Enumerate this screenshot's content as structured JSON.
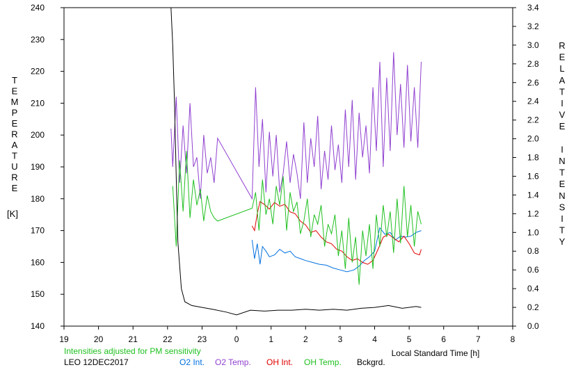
{
  "chart_data": {
    "type": "line",
    "ylabel_left": "TEMPERATURE",
    "ylabel_left_unit": "[K]",
    "ylabel_right": "RELATIVE INTENSITY",
    "xlabel": "Local Standard Time [h]",
    "note": "Intensities adjusted for PM sensitivity",
    "station": "LEO 12DEC2017",
    "x_ticks": [
      "19",
      "20",
      "21",
      "22",
      "23",
      "0",
      "1",
      "2",
      "3",
      "4",
      "5",
      "6",
      "7",
      "8"
    ],
    "y_left_ticks": [
      "140",
      "150",
      "160",
      "170",
      "180",
      "190",
      "200",
      "210",
      "220",
      "230",
      "240"
    ],
    "y_right_ticks": [
      "0.0",
      "0.2",
      "0.4",
      "0.6",
      "0.8",
      "1.0",
      "1.2",
      "1.4",
      "1.6",
      "1.8",
      "2.0",
      "2.2",
      "2.4",
      "2.6",
      "2.8",
      "3.0",
      "3.2",
      "3.4"
    ],
    "xlim": [
      19,
      32
    ],
    "ylim_left": [
      140,
      240
    ],
    "ylim_right": [
      0,
      3.4
    ],
    "grid": false,
    "series": [
      {
        "name": "O2 Int.",
        "axis": "right",
        "color": "#0070e0",
        "x": [
          24.45,
          24.52,
          24.6,
          24.68,
          24.75,
          24.85,
          24.95,
          25.1,
          25.25,
          25.4,
          25.55,
          25.7,
          25.85,
          26.0,
          26.2,
          26.4,
          26.6,
          26.8,
          27.0,
          27.2,
          27.4,
          27.55,
          27.7,
          27.85,
          28.0,
          28.15,
          28.3,
          28.45,
          28.6,
          28.75,
          28.9,
          29.05,
          29.2,
          29.35
        ],
        "y": [
          0.92,
          0.72,
          0.88,
          0.66,
          0.85,
          0.8,
          0.74,
          0.76,
          0.82,
          0.78,
          0.8,
          0.74,
          0.72,
          0.7,
          0.68,
          0.66,
          0.65,
          0.62,
          0.6,
          0.58,
          0.6,
          0.64,
          0.7,
          0.74,
          0.8,
          1.05,
          0.98,
          1.0,
          0.92,
          0.96,
          0.95,
          0.96,
          1.0,
          1.02
        ]
      },
      {
        "name": "O2 Temp.",
        "axis": "left",
        "color": "#9040d0",
        "x": [
          22.1,
          22.15,
          22.25,
          22.35,
          22.45,
          22.55,
          22.65,
          22.75,
          22.85,
          22.95,
          23.05,
          23.15,
          23.25,
          23.35,
          23.45,
          24.45,
          24.55,
          24.65,
          24.75,
          24.85,
          24.95,
          25.05,
          25.15,
          25.25,
          25.35,
          25.45,
          25.55,
          25.65,
          25.75,
          25.85,
          25.95,
          26.05,
          26.15,
          26.25,
          26.35,
          26.45,
          26.55,
          26.65,
          26.75,
          26.85,
          26.95,
          27.05,
          27.15,
          27.25,
          27.35,
          27.45,
          27.55,
          27.65,
          27.75,
          27.85,
          27.95,
          28.05,
          28.15,
          28.25,
          28.35,
          28.45,
          28.55,
          28.65,
          28.75,
          28.85,
          28.95,
          29.05,
          29.15,
          29.25,
          29.35
        ],
        "y": [
          202,
          190,
          212,
          185,
          203,
          188,
          210,
          190,
          193,
          180,
          200,
          188,
          193,
          185,
          199,
          180,
          215,
          190,
          205,
          182,
          201,
          187,
          200,
          182,
          188,
          198,
          185,
          194,
          188,
          180,
          204,
          185,
          199,
          190,
          206,
          183,
          195,
          186,
          203,
          189,
          197,
          185,
          208,
          190,
          211,
          186,
          207,
          193,
          203,
          188,
          215,
          195,
          223,
          190,
          218,
          195,
          226,
          200,
          216,
          196,
          222,
          198,
          215,
          196,
          223
        ]
      },
      {
        "name": "OH Int.",
        "axis": "right",
        "color": "#e00000",
        "x": [
          24.45,
          24.52,
          24.6,
          24.68,
          24.8,
          24.95,
          25.1,
          25.25,
          25.4,
          25.55,
          25.7,
          25.85,
          26.0,
          26.15,
          26.3,
          26.45,
          26.6,
          26.75,
          26.9,
          27.05,
          27.2,
          27.35,
          27.5,
          27.65,
          27.8,
          27.95,
          28.1,
          28.25,
          28.4,
          28.55,
          28.7,
          28.85,
          29.0,
          29.15,
          29.3,
          29.35
        ],
        "y": [
          1.07,
          1.02,
          1.2,
          1.33,
          1.3,
          1.25,
          1.32,
          1.28,
          1.3,
          1.22,
          1.2,
          1.12,
          1.08,
          1.0,
          1.02,
          0.95,
          0.9,
          0.88,
          0.82,
          0.8,
          0.74,
          0.7,
          0.72,
          0.68,
          0.66,
          0.7,
          0.82,
          0.95,
          0.98,
          0.94,
          0.9,
          0.96,
          0.88,
          0.78,
          0.76,
          0.82
        ]
      },
      {
        "name": "OH Temp.",
        "axis": "left",
        "color": "#20c020",
        "x": [
          22.15,
          22.25,
          22.35,
          22.45,
          22.55,
          22.65,
          22.75,
          22.85,
          22.95,
          23.05,
          23.15,
          23.25,
          23.35,
          23.45,
          24.45,
          24.55,
          24.65,
          24.75,
          24.85,
          24.95,
          25.05,
          25.15,
          25.25,
          25.35,
          25.45,
          25.55,
          25.65,
          25.75,
          25.85,
          25.95,
          26.05,
          26.15,
          26.25,
          26.35,
          26.45,
          26.55,
          26.65,
          26.75,
          26.85,
          26.95,
          27.05,
          27.15,
          27.25,
          27.35,
          27.45,
          27.55,
          27.65,
          27.75,
          27.85,
          27.95,
          28.05,
          28.15,
          28.25,
          28.35,
          28.45,
          28.55,
          28.65,
          28.75,
          28.85,
          28.95,
          29.05,
          29.15,
          29.25,
          29.35
        ],
        "y": [
          184,
          165,
          192,
          176,
          195,
          174,
          186,
          178,
          183,
          173,
          181,
          176,
          174,
          173,
          177,
          182,
          170,
          186,
          175,
          180,
          172,
          184,
          178,
          187,
          170,
          182,
          176,
          179,
          169,
          173,
          180,
          168,
          175,
          172,
          178,
          165,
          172,
          169,
          175,
          162,
          170,
          158,
          174,
          160,
          168,
          153,
          170,
          162,
          172,
          158,
          175,
          165,
          178,
          168,
          176,
          163,
          180,
          166,
          184,
          168,
          178,
          165,
          176,
          172
        ]
      },
      {
        "name": "Bckgrd.",
        "axis": "right",
        "color": "#000000",
        "x": [
          22.1,
          22.15,
          22.2,
          22.25,
          22.3,
          22.4,
          22.5,
          22.7,
          23.0,
          23.3,
          23.7,
          24.0,
          24.4,
          24.8,
          25.2,
          25.6,
          26.0,
          26.4,
          26.8,
          27.2,
          27.6,
          28.0,
          28.4,
          28.8,
          29.2,
          29.35
        ],
        "y": [
          3.4,
          3.0,
          2.4,
          1.6,
          0.9,
          0.4,
          0.26,
          0.22,
          0.2,
          0.18,
          0.15,
          0.12,
          0.17,
          0.16,
          0.17,
          0.17,
          0.18,
          0.17,
          0.18,
          0.17,
          0.19,
          0.2,
          0.22,
          0.19,
          0.21,
          0.2
        ]
      }
    ]
  }
}
